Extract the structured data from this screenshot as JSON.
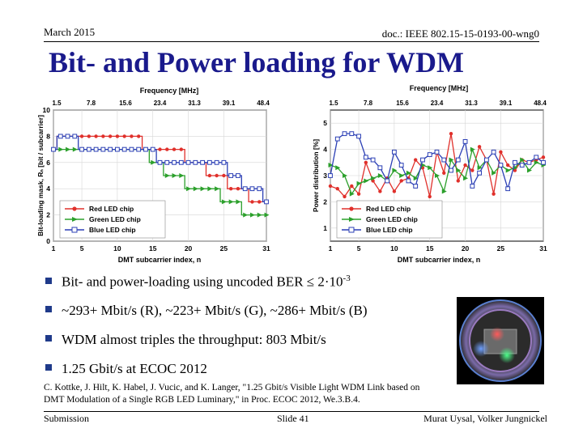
{
  "header": {
    "date": "March 2015",
    "doc": "doc.: IEEE 802.15-15-0193-00-wng0"
  },
  "title": "Bit- and Power loading for WDM",
  "charts_text": {
    "left": {
      "top_axis_label": "Frequency [MHz]",
      "top_ticks": [
        "1.5",
        "7.8",
        "15.6",
        "23.4",
        "31.3",
        "39.1",
        "48.4"
      ],
      "ylabel": "Bit-loading mask, Rₙ [bit / subcarrier]",
      "xlabel": "DMT subcarrier index, n",
      "xticks": [
        "1",
        "5",
        "10",
        "15",
        "20",
        "25",
        "31"
      ],
      "yticks": [
        "0",
        "2",
        "4",
        "6",
        "8",
        "10"
      ]
    },
    "right": {
      "top_axis_label": "Frequency [MHz]",
      "top_ticks": [
        "1.5",
        "7.8",
        "15.6",
        "23.4",
        "31.3",
        "39.1",
        "48.4"
      ],
      "ylabel": "Power distribution [%]",
      "xlabel": "DMT subcarrier index, n",
      "xticks": [
        "1",
        "5",
        "10",
        "15",
        "20",
        "25",
        "31"
      ],
      "yticks": [
        "1",
        "2",
        "3",
        "4",
        "5"
      ]
    },
    "legend": [
      "Red LED chip",
      "Green LED chip",
      "Blue LED chip"
    ]
  },
  "chart_data": [
    {
      "type": "line",
      "xlabel": "DMT subcarrier index, n",
      "ylabel": "Bit-loading mask, Rₙ [bit / subcarrier]",
      "xlim": [
        1,
        31
      ],
      "ylim": [
        0,
        10
      ],
      "x": [
        1,
        2,
        3,
        4,
        5,
        6,
        7,
        8,
        9,
        10,
        11,
        12,
        13,
        14,
        15,
        16,
        17,
        18,
        19,
        20,
        21,
        22,
        23,
        24,
        25,
        26,
        27,
        28,
        29,
        30,
        31
      ],
      "series": [
        {
          "name": "Red LED chip",
          "color": "#e0302b",
          "marker": "circle",
          "values": [
            7,
            8,
            8,
            8,
            8,
            8,
            8,
            8,
            8,
            8,
            8,
            8,
            8,
            7,
            7,
            7,
            7,
            7,
            7,
            6,
            6,
            6,
            5,
            5,
            5,
            4,
            4,
            4,
            3,
            3,
            3
          ]
        },
        {
          "name": "Green LED chip",
          "color": "#2ca02c",
          "marker": "triangle",
          "values": [
            7,
            7,
            7,
            7,
            7,
            7,
            7,
            7,
            7,
            7,
            7,
            7,
            7,
            7,
            6,
            6,
            5,
            5,
            5,
            4,
            4,
            4,
            4,
            4,
            3,
            3,
            3,
            2,
            2,
            2,
            2
          ]
        },
        {
          "name": "Blue LED chip",
          "color": "#2b3fb5",
          "marker": "square",
          "values": [
            7,
            8,
            8,
            8,
            7,
            7,
            7,
            7,
            7,
            7,
            7,
            7,
            7,
            7,
            7,
            6,
            6,
            6,
            6,
            6,
            6,
            6,
            6,
            6,
            6,
            5,
            5,
            4,
            4,
            4,
            3
          ]
        }
      ]
    },
    {
      "type": "line",
      "xlabel": "DMT subcarrier index, n",
      "ylabel": "Power distribution [%]",
      "xlim": [
        1,
        31
      ],
      "ylim": [
        0.5,
        5.5
      ],
      "x": [
        1,
        2,
        3,
        4,
        5,
        6,
        7,
        8,
        9,
        10,
        11,
        12,
        13,
        14,
        15,
        16,
        17,
        18,
        19,
        20,
        21,
        22,
        23,
        24,
        25,
        26,
        27,
        28,
        29,
        30,
        31
      ],
      "series": [
        {
          "name": "Red LED chip",
          "color": "#e0302b",
          "marker": "circle",
          "values": [
            2.6,
            2.5,
            2.2,
            2.6,
            2.3,
            3.5,
            2.8,
            2.4,
            2.9,
            2.4,
            2.8,
            2.9,
            3.6,
            3.3,
            2.2,
            3.9,
            3.1,
            4.6,
            2.8,
            3.4,
            3.2,
            4.1,
            3.6,
            2.3,
            3.9,
            3.4,
            3.2,
            3.6,
            3.5,
            3.6,
            3.7
          ]
        },
        {
          "name": "Green LED chip",
          "color": "#2ca02c",
          "marker": "triangle",
          "values": [
            3.4,
            3.3,
            3.0,
            2.3,
            2.7,
            2.8,
            2.9,
            3.0,
            2.8,
            3.2,
            3.0,
            3.1,
            2.9,
            3.4,
            3.3,
            3.0,
            2.4,
            3.6,
            3.2,
            2.9,
            4.0,
            3.3,
            3.6,
            3.1,
            3.4,
            3.2,
            3.3,
            3.6,
            3.2,
            3.5,
            3.4
          ]
        },
        {
          "name": "Blue LED chip",
          "color": "#2b3fb5",
          "marker": "square",
          "values": [
            3.0,
            4.4,
            4.6,
            4.6,
            4.5,
            3.7,
            3.6,
            3.3,
            2.8,
            3.9,
            3.4,
            2.8,
            2.6,
            3.6,
            3.8,
            3.9,
            3.6,
            3.2,
            3.6,
            4.3,
            2.6,
            3.1,
            3.6,
            3.9,
            3.4,
            2.5,
            3.5,
            3.4,
            3.5,
            3.7,
            3.5
          ]
        }
      ]
    }
  ],
  "bullets": [
    {
      "text": "Bit- and power-loading using uncoded BER ≤  2·10",
      "sup": "-3"
    },
    {
      "text": "~293+ Mbit/s (R), ~223+ Mbit/s (G), ~286+ Mbit/s (B)",
      "sup": ""
    },
    {
      "text": "WDM almost triples the throughput: 803 Mbit/s",
      "sup": ""
    },
    {
      "text": "1.25 Gbit/s at ECOC 2012",
      "sup": ""
    }
  ],
  "reference": "C. Kottke, J. Hilt, K. Habel, J. Vucic, and K. Langer, \"1.25 Gbit/s Visible Light WDM Link based on DMT Modulation of a Single RGB LED Luminary,\" in Proc. ECOC 2012, We.3.B.4.",
  "footer": {
    "left": "Submission",
    "center": "Slide 41",
    "right": "Murat Uysal, Volker Jungnickel"
  }
}
